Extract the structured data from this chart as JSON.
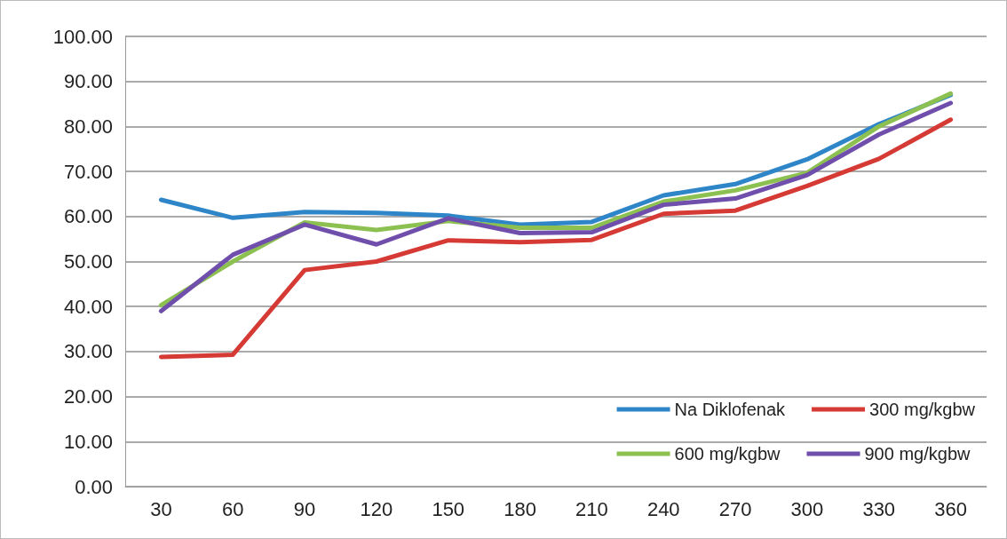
{
  "chart_data": {
    "type": "line",
    "categories": [
      "30",
      "60",
      "90",
      "120",
      "150",
      "180",
      "210",
      "240",
      "270",
      "300",
      "330",
      "360"
    ],
    "ylim": [
      0,
      100
    ],
    "yticks": [
      {
        "value": 0,
        "label": "0.00"
      },
      {
        "value": 10,
        "label": "10.00"
      },
      {
        "value": 20,
        "label": "20.00"
      },
      {
        "value": 30,
        "label": "30.00"
      },
      {
        "value": 40,
        "label": "40.00"
      },
      {
        "value": 50,
        "label": "50.00"
      },
      {
        "value": 60,
        "label": "60.00"
      },
      {
        "value": 70,
        "label": "70.00"
      },
      {
        "value": 80,
        "label": "80.00"
      },
      {
        "value": 90,
        "label": "90.00"
      },
      {
        "value": 100,
        "label": "100.00"
      }
    ],
    "grid": "y",
    "legend": "bottom right",
    "marker": "none",
    "line_style": "solid",
    "series": [
      {
        "name": "Na Diklofenak",
        "color": "#2e86c8",
        "values": [
          63.7,
          59.7,
          61,
          60.8,
          60.2,
          58.2,
          58.8,
          64.7,
          67.2,
          72.7,
          80.5,
          87
        ]
      },
      {
        "name": "300 mg/kgbw",
        "color": "#d63a35",
        "values": [
          28.8,
          29.3,
          48.1,
          50,
          54.7,
          54.3,
          54.8,
          60.6,
          61.3,
          66.8,
          72.8,
          81.5
        ]
      },
      {
        "name": "600 mg/kgbw",
        "color": "#8cc151",
        "values": [
          40.3,
          50,
          58.7,
          57,
          59,
          57.5,
          57.5,
          63.3,
          65.8,
          69.7,
          80,
          87.3
        ]
      },
      {
        "name": "900 mg/kgbw",
        "color": "#6f4fab",
        "values": [
          39,
          51.5,
          58.2,
          53.8,
          59.6,
          56.3,
          56.5,
          62.6,
          64,
          69.2,
          78.2,
          85.2
        ]
      }
    ]
  }
}
